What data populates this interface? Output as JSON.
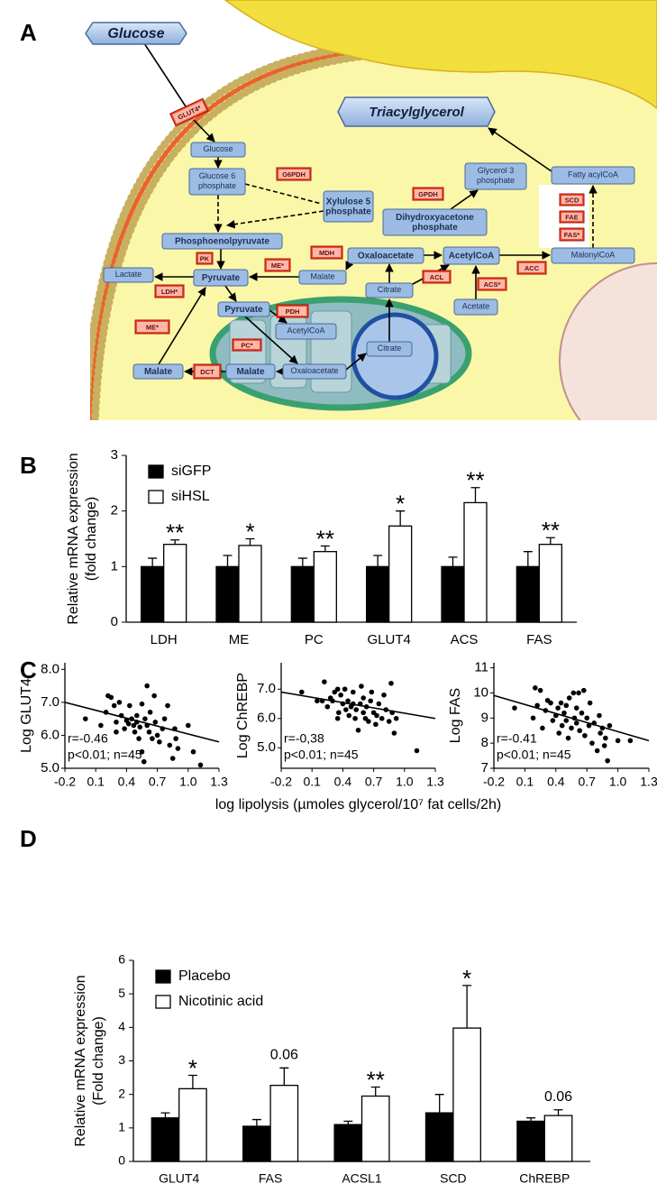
{
  "panel_labels": [
    "A",
    "B",
    "C",
    "D"
  ],
  "diagram": {
    "banners": [
      "Glucose",
      "Triacylglycerol"
    ],
    "nodes": [
      [
        "Glucose"
      ],
      [
        "Glucose 6",
        "phosphate"
      ],
      [
        "Xylulose 5",
        "phosphate"
      ],
      [
        "Phosphoenolpyruvate"
      ],
      [
        "Lactate"
      ],
      [
        "Pyruvate"
      ],
      [
        "Malate"
      ],
      [
        "Oxaloacetate"
      ],
      [
        "AcetylCoA"
      ],
      [
        "Acetate"
      ],
      [
        "Citrate"
      ],
      [
        "Glycerol 3",
        "phosphate"
      ],
      [
        "Dihydroxyacetone",
        "phosphate"
      ],
      [
        "Fatty acylCoA"
      ],
      [
        "MalonylCoA"
      ],
      [
        "Pyruvate"
      ],
      [
        "AcetylCoA"
      ],
      [
        "Oxaloacetate"
      ],
      [
        "Citrate"
      ],
      [
        "Malate"
      ],
      [
        "Malate"
      ]
    ],
    "enzymes": [
      "GLUT4*",
      "G6PDH",
      "PK",
      "LDH*",
      "ME*",
      "MDH",
      "ACL",
      "ACS*",
      "GPDH",
      "SCD",
      "FAE",
      "FAS*",
      "ACC",
      "ME*",
      "PDH",
      "PC*",
      "DCT"
    ]
  },
  "chart_data": [
    {
      "type": "bar",
      "ylabel": [
        "Relative mRNA expression",
        "(fold change)"
      ],
      "categories": [
        "LDH",
        "ME",
        "PC",
        "GLUT4",
        "ACS",
        "FAS"
      ],
      "series": [
        {
          "name": "siGFP",
          "color": "#000000",
          "values": [
            1,
            1,
            1,
            1,
            1,
            1
          ],
          "errors": [
            0.15,
            0.2,
            0.15,
            0.2,
            0.17,
            0.27
          ]
        },
        {
          "name": "siHSL",
          "color": "#ffffff",
          "values": [
            1.4,
            1.38,
            1.27,
            1.73,
            2.15,
            1.4
          ],
          "errors": [
            0.08,
            0.12,
            0.1,
            0.27,
            0.27,
            0.12
          ]
        }
      ],
      "annotations": [
        "**",
        "*",
        "**",
        "*",
        "**",
        "**"
      ],
      "ylim": [
        0,
        3
      ],
      "yticks": [
        0,
        1,
        2,
        3
      ],
      "legend": "upper left"
    },
    {
      "type": "scatter",
      "ylabel": "Log GLUT4",
      "x": [
        0.0,
        0.15,
        0.2,
        0.22,
        0.25,
        0.28,
        0.3,
        0.3,
        0.33,
        0.35,
        0.38,
        0.4,
        0.42,
        0.43,
        0.45,
        0.47,
        0.48,
        0.5,
        0.5,
        0.52,
        0.53,
        0.55,
        0.55,
        0.57,
        0.58,
        0.6,
        0.6,
        0.62,
        0.63,
        0.65,
        0.67,
        0.68,
        0.7,
        0.72,
        0.75,
        0.77,
        0.8,
        0.82,
        0.85,
        0.87,
        0.88,
        0.9,
        1.0,
        1.05,
        1.12
      ],
      "y": [
        6.5,
        6.3,
        6.7,
        7.2,
        7.15,
        6.9,
        6.4,
        6.1,
        7.0,
        6.6,
        6.2,
        6.45,
        6.35,
        6.9,
        6.5,
        6.3,
        6.1,
        6.6,
        6.4,
        5.9,
        6.25,
        5.5,
        6.95,
        5.2,
        6.5,
        7.5,
        6.3,
        6.1,
        6.7,
        5.9,
        7.2,
        6.4,
        6.0,
        5.8,
        6.2,
        6.5,
        6.9,
        5.7,
        5.3,
        6.2,
        5.9,
        5.6,
        6.3,
        5.5,
        5.1
      ],
      "trendline": {
        "x": [
          -0.2,
          1.3
        ],
        "y": [
          7.0,
          5.8
        ]
      },
      "stats": [
        "r=-0.46",
        "p<0.01; n=45"
      ],
      "xlim": [
        -0.2,
        1.3
      ],
      "xticks": [
        -0.2,
        0.1,
        0.4,
        0.7,
        {
          "value": 1,
          "label": "1.0"
        },
        1.3
      ],
      "ylim": [
        5,
        8.2
      ],
      "yticks": [
        {
          "value": 5,
          "label": "5.0"
        },
        {
          "value": 6,
          "label": "6.0"
        },
        {
          "value": 7,
          "label": "7.0"
        },
        {
          "value": 8,
          "label": "8.0"
        }
      ]
    },
    {
      "type": "scatter",
      "ylabel": "Log ChREBP",
      "xlabel": "log lipolysis (µmoles glycerol/10⁷ fat cells/2h)",
      "x": [
        0.0,
        0.2,
        0.22,
        0.25,
        0.28,
        0.3,
        0.32,
        0.35,
        0.36,
        0.38,
        0.4,
        0.42,
        0.43,
        0.45,
        0.46,
        0.48,
        0.5,
        0.5,
        0.52,
        0.53,
        0.55,
        0.57,
        0.58,
        0.6,
        0.6,
        0.62,
        0.63,
        0.65,
        0.67,
        0.68,
        0.7,
        0.72,
        0.73,
        0.75,
        0.78,
        0.8,
        0.82,
        0.85,
        0.87,
        0.88,
        0.9,
        0.92,
        0.35,
        0.15,
        1.12
      ],
      "y": [
        6.9,
        6.6,
        7.25,
        6.4,
        6.7,
        6.6,
        6.9,
        7.0,
        6.2,
        6.8,
        6.5,
        7.0,
        6.3,
        6.6,
        6.1,
        6.4,
        6.9,
        6.5,
        6.0,
        6.3,
        5.6,
        6.5,
        7.1,
        6.2,
        6.7,
        6.0,
        6.4,
        5.9,
        6.6,
        6.9,
        6.2,
        5.8,
        6.1,
        6.5,
        6.0,
        6.8,
        6.3,
        5.9,
        7.2,
        6.2,
        5.5,
        6.0,
        6.0,
        6.6,
        4.9
      ],
      "trendline": {
        "x": [
          -0.2,
          1.3
        ],
        "y": [
          6.9,
          6.0
        ]
      },
      "stats": [
        "r=-0,38",
        "p<0.01; n=45"
      ],
      "xlim": [
        -0.2,
        1.3
      ],
      "xticks": [
        -0.2,
        0.1,
        0.4,
        0.7,
        {
          "value": 1,
          "label": "1.0"
        },
        1.3
      ],
      "ylim": [
        4.3,
        7.9
      ],
      "yticks": [
        {
          "value": 5,
          "label": "5.0"
        },
        {
          "value": 6,
          "label": "6.0"
        },
        {
          "value": 7,
          "label": "7.0"
        }
      ]
    },
    {
      "type": "scatter",
      "ylabel": "Log FAS",
      "x": [
        0.0,
        0.2,
        0.22,
        0.25,
        0.27,
        0.3,
        0.32,
        0.35,
        0.37,
        0.4,
        0.42,
        0.43,
        0.45,
        0.46,
        0.48,
        0.5,
        0.5,
        0.52,
        0.53,
        0.55,
        0.57,
        0.58,
        0.6,
        0.6,
        0.62,
        0.63,
        0.65,
        0.67,
        0.68,
        0.7,
        0.72,
        0.73,
        0.75,
        0.77,
        0.8,
        0.82,
        0.83,
        0.85,
        0.87,
        0.88,
        0.9,
        0.92,
        1.0,
        1.12,
        0.18
      ],
      "y": [
        9.4,
        10.2,
        9.5,
        10.1,
        8.6,
        9.3,
        9.7,
        9.6,
        8.9,
        9.1,
        9.4,
        8.4,
        9.6,
        8.7,
        9.2,
        8.9,
        9.5,
        8.2,
        9.8,
        8.6,
        10.0,
        9.0,
        8.8,
        9.4,
        10.0,
        8.5,
        9.2,
        10.1,
        8.3,
        9.0,
        8.7,
        9.6,
        8.0,
        8.8,
        7.7,
        9.1,
        8.4,
        8.6,
        7.9,
        8.2,
        7.3,
        8.7,
        8.1,
        8.1,
        9.0
      ],
      "trendline": {
        "x": [
          -0.2,
          1.3
        ],
        "y": [
          9.9,
          8.1
        ]
      },
      "stats": [
        "r=-0.41",
        "p<0.01; n=45"
      ],
      "xlim": [
        -0.2,
        1.3
      ],
      "xticks": [
        -0.2,
        0.1,
        0.4,
        0.7,
        {
          "value": 1,
          "label": "1.0"
        },
        1.3
      ],
      "ylim": [
        7,
        11.2
      ],
      "yticks": [
        7,
        8,
        9,
        10,
        11
      ]
    },
    {
      "type": "bar",
      "ylabel": [
        "Relative mRNA expression",
        "(Fold change)"
      ],
      "categories": [
        "GLUT4",
        "FAS",
        "ACSL1",
        "SCD",
        "ChREBP"
      ],
      "series": [
        {
          "name": "Placebo",
          "color": "#000000",
          "values": [
            1.3,
            1.05,
            1.1,
            1.45,
            1.2
          ],
          "errors": [
            0.15,
            0.2,
            0.1,
            0.55,
            0.1
          ]
        },
        {
          "name": "Nicotinic acid",
          "color": "#ffffff",
          "values": [
            2.17,
            2.27,
            1.95,
            3.98,
            1.37
          ],
          "errors": [
            0.4,
            0.52,
            0.27,
            1.27,
            0.17
          ]
        }
      ],
      "annotations": [
        "*",
        "0.06",
        "**",
        "*",
        "0.06"
      ],
      "ylim": [
        0,
        6
      ],
      "yticks": [
        0,
        1,
        2,
        3,
        4,
        5,
        6
      ],
      "legend": "upper left"
    }
  ]
}
